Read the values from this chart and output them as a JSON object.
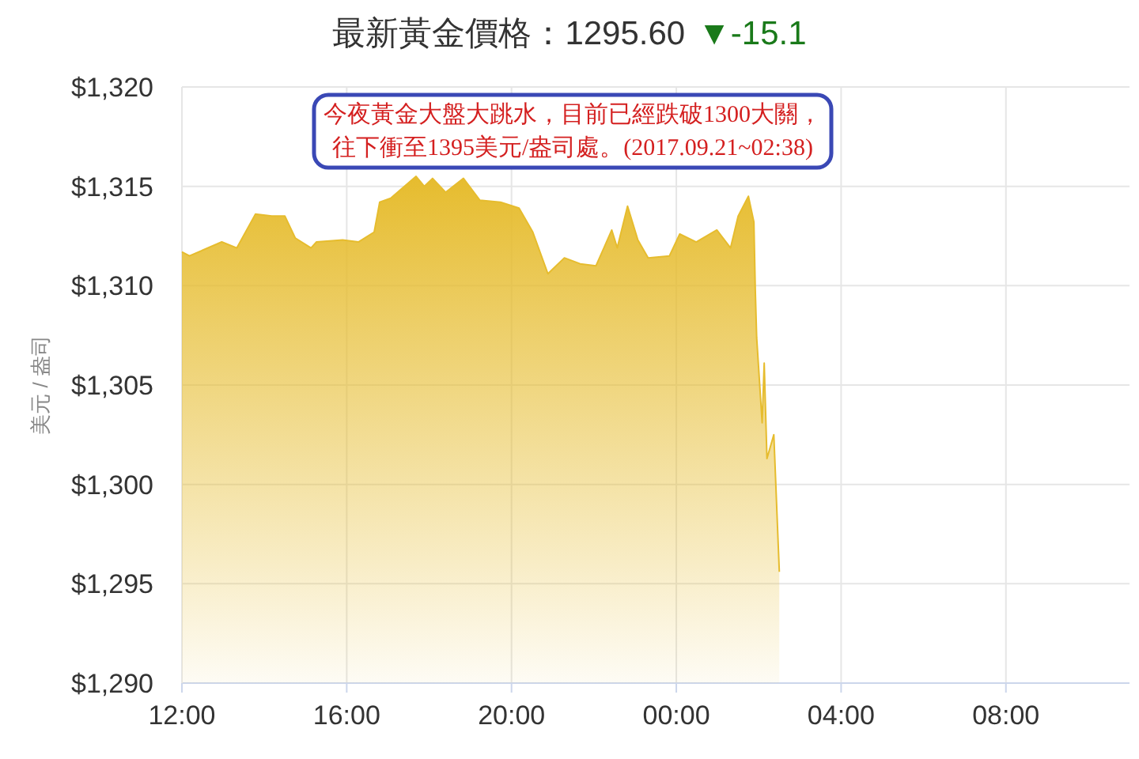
{
  "chart_data": {
    "type": "area",
    "title": "最新黃金價格：1295.60",
    "ylabel": "美元 / 盎司",
    "annotations": [
      "▼-15.1",
      "今夜黃金大盤大跳水，目前已經跌破1300大關，往下衝至1395美元/盎司處。(2017.09.21~02:38)"
    ],
    "x": [
      "2017-09-20T12:00",
      "2017-09-20T12:11",
      "2017-09-20T12:58",
      "2017-09-20T13:20",
      "2017-09-20T13:47",
      "2017-09-20T14:11",
      "2017-09-20T14:30",
      "2017-09-20T14:45",
      "2017-09-20T15:08",
      "2017-09-20T15:16",
      "2017-09-20T15:54",
      "2017-09-20T16:17",
      "2017-09-20T16:40",
      "2017-09-20T16:48",
      "2017-09-20T17:04",
      "2017-09-20T17:41",
      "2017-09-20T17:53",
      "2017-09-20T18:05",
      "2017-09-20T18:24",
      "2017-09-20T18:50",
      "2017-09-20T19:14",
      "2017-09-20T19:44",
      "2017-09-20T20:11",
      "2017-09-20T20:31",
      "2017-09-20T20:53",
      "2017-09-20T21:17",
      "2017-09-20T21:40",
      "2017-09-20T22:03",
      "2017-09-20T22:26",
      "2017-09-20T22:34",
      "2017-09-20T22:49",
      "2017-09-20T23:04",
      "2017-09-20T23:19",
      "2017-09-20T23:50",
      "2017-09-21T00:05",
      "2017-09-21T00:29",
      "2017-09-21T00:59",
      "2017-09-21T01:19",
      "2017-09-21T01:30",
      "2017-09-21T01:45",
      "2017-09-21T01:53",
      "2017-09-21T01:55",
      "2017-09-21T01:57",
      "2017-09-21T02:05",
      "2017-09-21T02:08",
      "2017-09-21T02:12",
      "2017-09-21T02:22",
      "2017-09-21T02:30"
    ],
    "values": [
      1311.7,
      1311.5,
      1312.2,
      1311.9,
      1313.6,
      1313.5,
      1313.5,
      1312.4,
      1311.9,
      1312.2,
      1312.3,
      1312.2,
      1312.7,
      1314.2,
      1314.4,
      1315.5,
      1315.0,
      1315.4,
      1314.7,
      1315.4,
      1314.3,
      1314.2,
      1313.9,
      1312.7,
      1310.6,
      1311.4,
      1311.1,
      1311.0,
      1312.8,
      1311.9,
      1314.0,
      1312.3,
      1311.4,
      1311.5,
      1312.6,
      1312.2,
      1312.8,
      1311.9,
      1313.5,
      1314.5,
      1313.2,
      1309.8,
      1307.4,
      1303.1,
      1306.1,
      1301.3,
      1302.5,
      1295.6
    ],
    "color": "#e6bc2e",
    "xlim": [
      "2017-09-20T12:00",
      "2017-09-21T11:00"
    ],
    "ylim": [
      1290,
      1320
    ],
    "xticks": [
      {
        "value": "2017-09-20T12:00",
        "label": "12:00"
      },
      {
        "value": "2017-09-20T16:00",
        "label": "16:00"
      },
      {
        "value": "2017-09-20T20:00",
        "label": "20:00"
      },
      {
        "value": "2017-09-21T00:00",
        "label": "00:00"
      },
      {
        "value": "2017-09-21T04:00",
        "label": "04:00"
      },
      {
        "value": "2017-09-21T08:00",
        "label": "08:00"
      }
    ],
    "yticks": [
      {
        "value": 1290,
        "label": "$1,290"
      },
      {
        "value": 1295,
        "label": "$1,295"
      },
      {
        "value": 1300,
        "label": "$1,300"
      },
      {
        "value": 1305,
        "label": "$1,305"
      },
      {
        "value": 1310,
        "label": "$1,310"
      },
      {
        "value": 1315,
        "label": "$1,315"
      },
      {
        "value": 1320,
        "label": "$1,320"
      }
    ],
    "grid": true
  }
}
